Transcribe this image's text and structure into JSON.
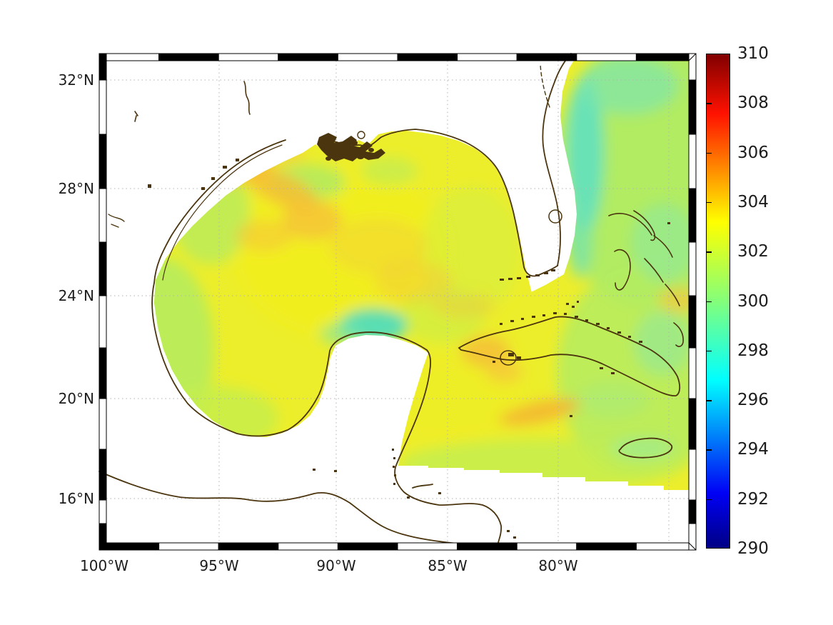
{
  "figure": {
    "background_color": "#ffffff",
    "description_region": "Gulf of Mexico / Caribbean sea-surface field map with jet colorbar"
  },
  "map": {
    "x_axis": {
      "tick_labels": [
        "100°W",
        "95°W",
        "90°W",
        "85°W",
        "80°W"
      ]
    },
    "y_axis": {
      "tick_labels": [
        "32°N",
        "28°N",
        "24°N",
        "20°N",
        "16°N"
      ]
    },
    "gridline_style": "dotted",
    "coastline_color": "#4b350f",
    "land_color": "#ffffff"
  },
  "colorbar": {
    "min": 290,
    "max": 310,
    "tick_labels": [
      "310",
      "308",
      "306",
      "304",
      "302",
      "300",
      "298",
      "296",
      "294",
      "292",
      "290"
    ],
    "colormap": "jet",
    "top_color": "#800000",
    "bottom_color": "#000084"
  },
  "chart_data": {
    "type": "heatmap",
    "title": "",
    "xlabel": "",
    "ylabel": "",
    "x_ticks": [
      "100°W",
      "95°W",
      "90°W",
      "85°W",
      "80°W"
    ],
    "y_ticks": [
      "32°N",
      "28°N",
      "24°N",
      "20°N",
      "16°N"
    ],
    "colorbar_ticks": [
      310,
      308,
      306,
      304,
      302,
      300,
      298,
      296,
      294,
      292,
      290
    ],
    "colorbar_range": [
      290,
      310
    ],
    "colormap": "jet",
    "grid": true,
    "legend_position": "right-colorbar",
    "field_estimates": [
      {
        "region": "central Gulf of Mexico",
        "value": 302.0
      },
      {
        "region": "northwest Gulf warm swirls",
        "value": 303.5
      },
      {
        "region": "Louisiana-Texas shelf",
        "value": 300.5
      },
      {
        "region": "western Gulf nearshore",
        "value": 300.0
      },
      {
        "region": "north of Yucatan (cool patch)",
        "value": 298.5
      },
      {
        "region": "east of Florida coastal band",
        "value": 298.8
      },
      {
        "region": "open Atlantic / Bahamas",
        "value": 300.3
      },
      {
        "region": "Straits of Florida",
        "value": 301.8
      },
      {
        "region": "south of Cuba warm streak",
        "value": 303.0
      },
      {
        "region": "around Jamaica",
        "value": 300.5
      },
      {
        "region": "northwest Caribbean",
        "value": 301.5
      }
    ]
  }
}
